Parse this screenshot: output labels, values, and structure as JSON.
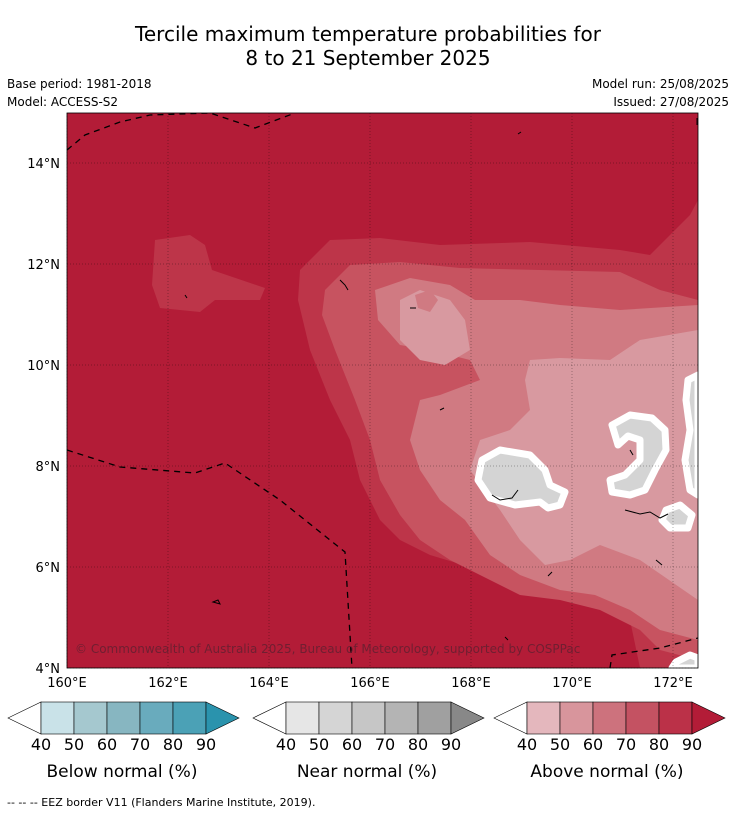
{
  "header": {
    "title_line1": "Tercile maximum temperature probabilities for",
    "title_line2": "8 to 21 September 2025",
    "base_period": "Base period: 1981-2018",
    "model": "Model: ACCESS-S2",
    "model_run": "Model run: 25/08/2025",
    "issued": "Issued: 27/08/2025"
  },
  "map": {
    "lat_labels": [
      "14°N",
      "12°N",
      "10°N",
      "8°N",
      "6°N",
      "4°N"
    ],
    "lon_labels": [
      "160°E",
      "162°E",
      "164°E",
      "166°E",
      "168°E",
      "170°E",
      "172°E"
    ],
    "copyright": "© Commonwealth of Australia 2025, Bureau of Meteorology, supported by COSPPac",
    "colors": {
      "above_90": "#b31c37",
      "above_80": "#bd3549",
      "above_70": "#c75360",
      "above_60": "#d07a82",
      "above_50": "#d899a0",
      "near_normal_50": "#d4d4d4",
      "land_outline": "#000000"
    }
  },
  "colorbars": [
    {
      "label": "Below normal (%)",
      "ticks": [
        "40",
        "50",
        "60",
        "70",
        "80",
        "90"
      ],
      "colors": [
        "#ffffff",
        "#c9e2e8",
        "#a5c8cf",
        "#87b6c1",
        "#69abbd",
        "#4ba1b6",
        "#2a93ad"
      ]
    },
    {
      "label": "Near normal (%)",
      "ticks": [
        "40",
        "50",
        "60",
        "70",
        "80",
        "90"
      ],
      "colors": [
        "#ffffff",
        "#e6e6e6",
        "#d5d5d5",
        "#c6c6c6",
        "#b4b4b4",
        "#a0a0a0",
        "#888888"
      ]
    },
    {
      "label": "Above normal (%)",
      "ticks": [
        "40",
        "50",
        "60",
        "70",
        "80",
        "90"
      ],
      "colors": [
        "#ffffff",
        "#e4b7bd",
        "#d8959c",
        "#cd727d",
        "#c45262",
        "#bb3148",
        "#b31c37"
      ]
    }
  ],
  "footer": {
    "legend_line": "--  --  -- EEZ border V11 (Flanders Marine Institute, 2019)."
  }
}
